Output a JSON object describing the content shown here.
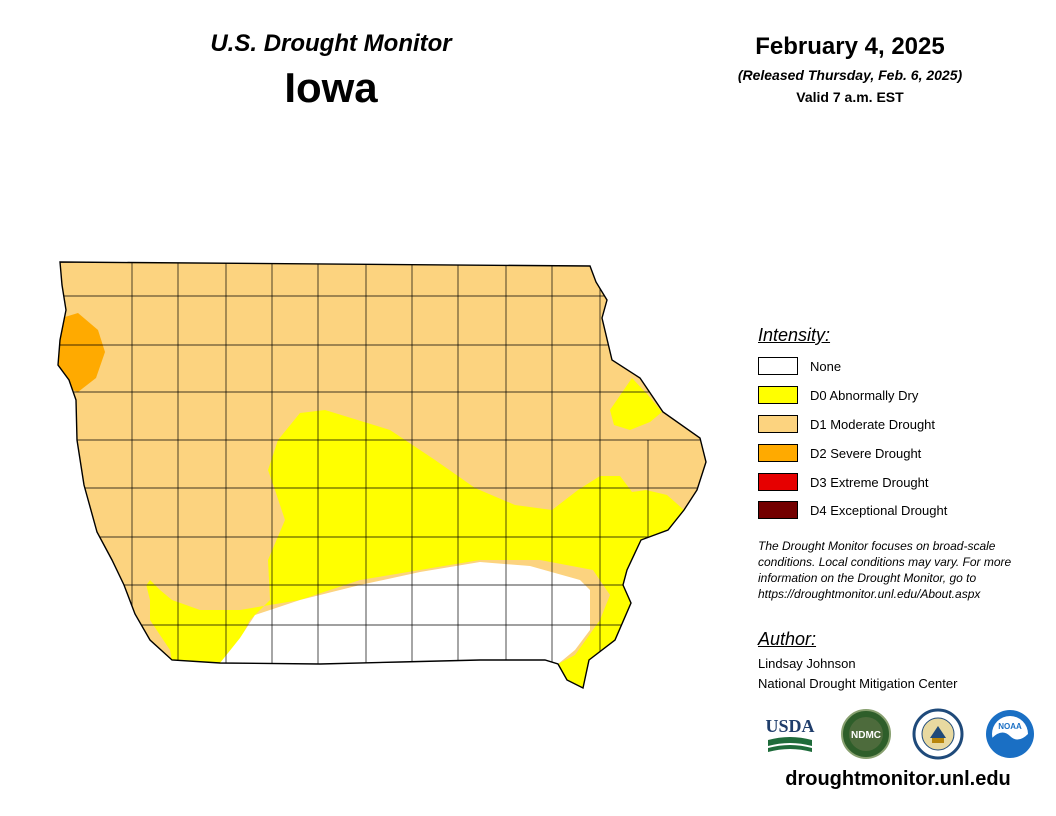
{
  "header": {
    "title": "U.S. Drought Monitor",
    "state": "Iowa",
    "date": "February 4, 2025",
    "released": "(Released Thursday, Feb. 6, 2025)",
    "valid": "Valid 7 a.m. EST"
  },
  "legend": {
    "title": "Intensity:",
    "items": [
      {
        "label": "None",
        "color": "#ffffff"
      },
      {
        "label": "D0 Abnormally Dry",
        "color": "#ffff00"
      },
      {
        "label": "D1 Moderate Drought",
        "color": "#fcd37f"
      },
      {
        "label": "D2 Severe Drought",
        "color": "#ffaa00"
      },
      {
        "label": "D3 Extreme Drought",
        "color": "#e60000"
      },
      {
        "label": "D4 Exceptional Drought",
        "color": "#730000"
      }
    ]
  },
  "note": "The Drought Monitor focuses on broad-scale conditions. Local conditions may vary. For more information on the Drought Monitor, go to https://droughtmonitor.unl.edu/About.aspx",
  "author": {
    "title": "Author:",
    "name": "Lindsay Johnson",
    "organization": "National Drought Mitigation Center"
  },
  "logos": [
    {
      "name": "usda-logo",
      "text": "USDA"
    },
    {
      "name": "ndmc-logo",
      "text": "NDMC"
    },
    {
      "name": "commerce-seal-logo",
      "text": ""
    },
    {
      "name": "noaa-logo",
      "text": "NOAA"
    }
  ],
  "website": "droughtmonitor.unl.edu"
}
